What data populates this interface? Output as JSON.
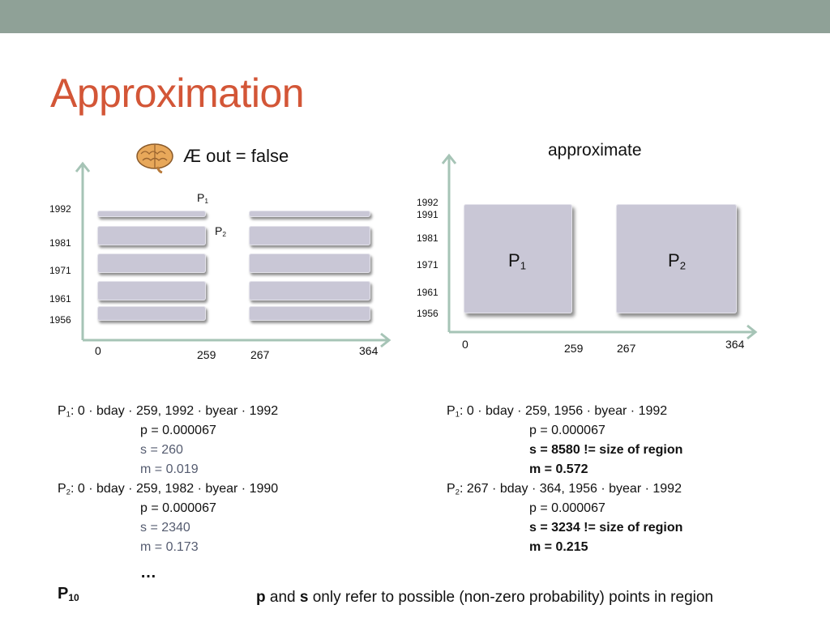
{
  "slide": {
    "title": "Approximation",
    "colors": {
      "top_bar": "#8fa197",
      "title": "#d35637",
      "axis": "#a6c4b6",
      "region": "#c9c7d6"
    }
  },
  "left_chart": {
    "header": "Æ out = false",
    "icon": "brain-icon",
    "y_ticks": [
      "1992",
      "1981",
      "1971",
      "1961",
      "1956"
    ],
    "x_ticks": [
      "0",
      "259",
      "267",
      "364"
    ],
    "labels": {
      "p1": "P",
      "p1_sub": "1",
      "p2": "P",
      "p2_sub": "2"
    }
  },
  "right_chart": {
    "header": "approximate",
    "y_ticks": [
      "1992",
      "1991",
      "1981",
      "1971",
      "1961",
      "1956"
    ],
    "x_ticks": [
      "0",
      "259",
      "267",
      "364"
    ],
    "regions": [
      {
        "label": "P",
        "sub": "1"
      },
      {
        "label": "P",
        "sub": "2"
      }
    ]
  },
  "left_text": {
    "p1": {
      "name": "P",
      "sub": "1",
      "def": ": 0 · bday · 259, 1992 · byear · 1992",
      "p": "p = 0.000067",
      "s": "s = 260",
      "m": "m = 0.019"
    },
    "p2": {
      "name": "P",
      "sub": "2",
      "def": ": 0 · bday · 259, 1982 · byear · 1990",
      "p": "p = 0.000067",
      "s": "s = 2340",
      "m": "m = 0.173"
    },
    "ellipsis": "…",
    "p10": {
      "name": "P",
      "sub": "10"
    }
  },
  "right_text": {
    "p1": {
      "name": "P",
      "sub": "1",
      "def": ": 0 · bday · 259, 1956 · byear · 1992",
      "p": "p = 0.000067",
      "s": "s = 8580 != size of region",
      "m": "m = 0.572"
    },
    "p2": {
      "name": "P",
      "sub": "2",
      "def": ": 267 · bday · 364, 1956 · byear · 1992",
      "p": "p = 0.000067",
      "s": "s = 3234 != size of region",
      "m": "m = 0.215"
    }
  },
  "footnote": {
    "p": "p",
    "and": " and ",
    "s": "s",
    "rest": " only refer to possible (non-zero probability) points in region"
  }
}
